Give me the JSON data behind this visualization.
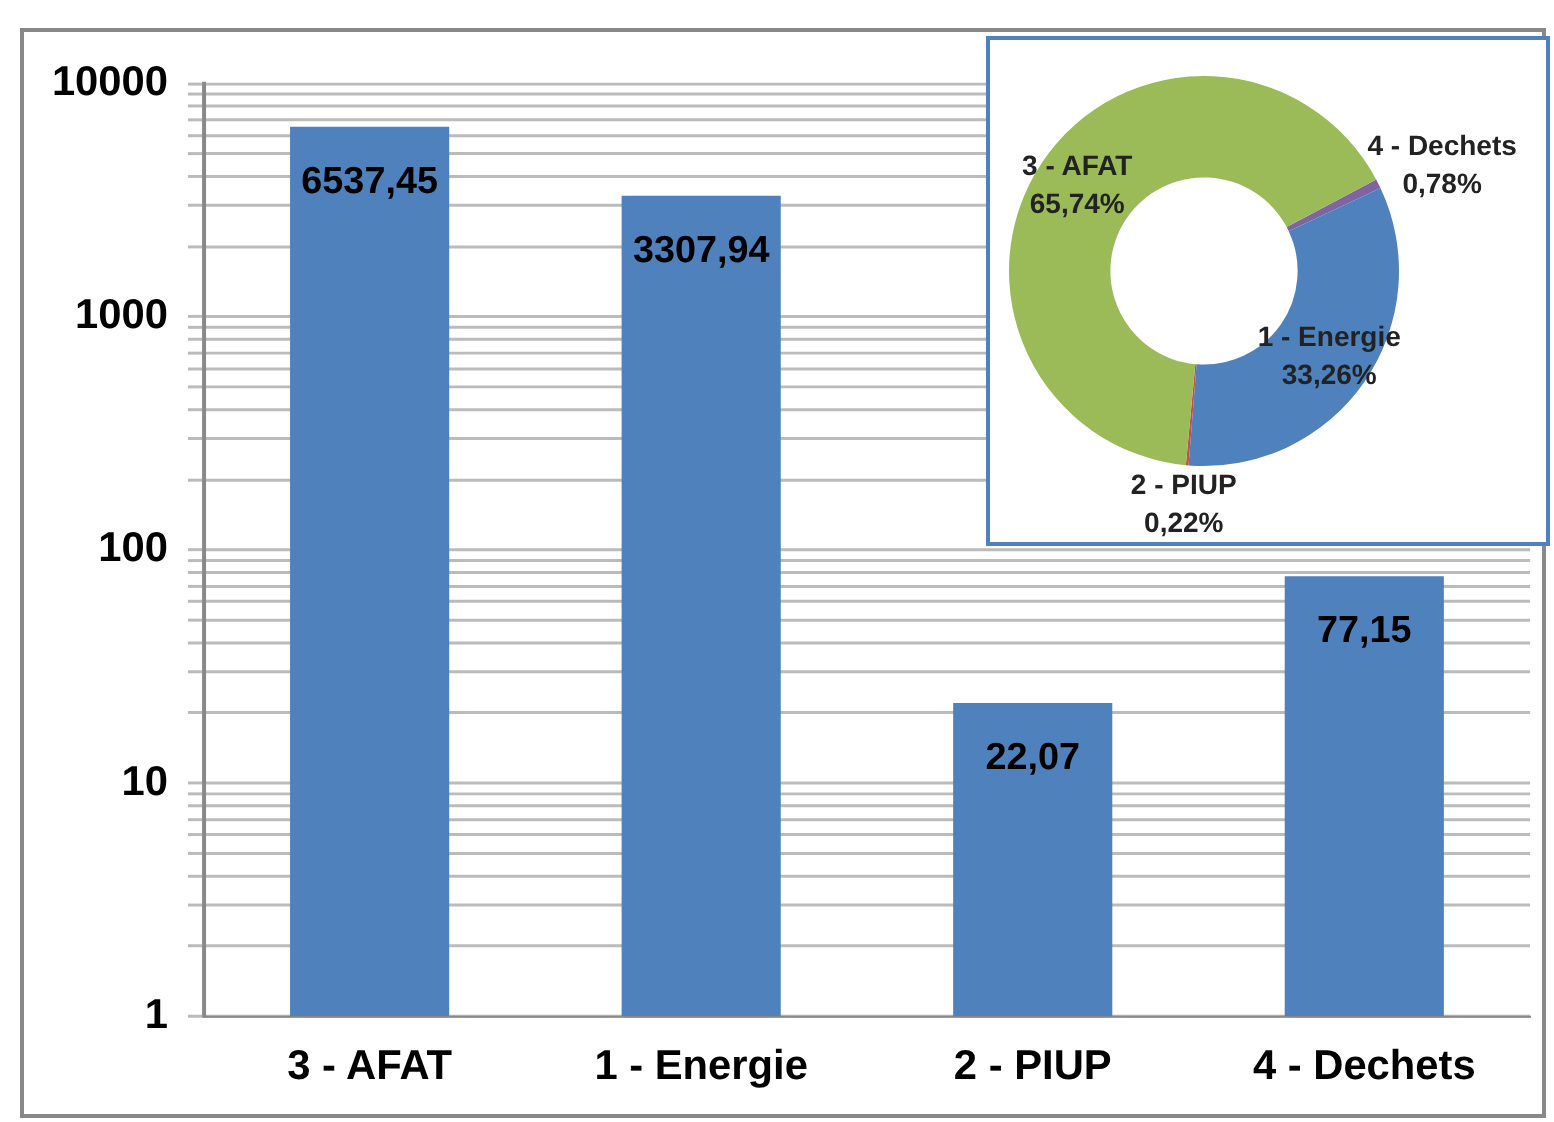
{
  "chart_data": [
    {
      "type": "bar",
      "log": "y",
      "categories": [
        "3 - AFAT",
        "1 - Energie",
        "2 - PIUP",
        "4 - Dechets"
      ],
      "values": [
        6537.45,
        3307.94,
        22.07,
        77.15
      ],
      "value_labels": [
        "6537,45",
        "3307,94",
        "22,07",
        "77,15"
      ],
      "color": "#4f81bd",
      "ylim": [
        1,
        10000
      ],
      "yticks": [
        1,
        {
          "value": 2,
          "label": null
        },
        {
          "value": 3,
          "label": null
        },
        {
          "value": 4,
          "label": null
        },
        {
          "value": 5,
          "label": null
        },
        {
          "value": 6,
          "label": null
        },
        {
          "value": 7,
          "label": null
        },
        {
          "value": 8,
          "label": null
        },
        {
          "value": 9,
          "label": null
        },
        10,
        {
          "value": 20,
          "label": null
        },
        {
          "value": 30,
          "label": null
        },
        {
          "value": 40,
          "label": null
        },
        {
          "value": 50,
          "label": null
        },
        {
          "value": 60,
          "label": null
        },
        {
          "value": 70,
          "label": null
        },
        {
          "value": 80,
          "label": null
        },
        {
          "value": 90,
          "label": null
        },
        100,
        {
          "value": 200,
          "label": null
        },
        {
          "value": 300,
          "label": null
        },
        {
          "value": 400,
          "label": null
        },
        {
          "value": 500,
          "label": null
        },
        {
          "value": 600,
          "label": null
        },
        {
          "value": 700,
          "label": null
        },
        {
          "value": 800,
          "label": null
        },
        {
          "value": 900,
          "label": null
        },
        1000,
        {
          "value": 2000,
          "label": null
        },
        {
          "value": 3000,
          "label": null
        },
        {
          "value": 4000,
          "label": null
        },
        {
          "value": 5000,
          "label": null
        },
        {
          "value": 6000,
          "label": null
        },
        {
          "value": 7000,
          "label": null
        },
        {
          "value": 8000,
          "label": null
        },
        {
          "value": 9000,
          "label": null
        },
        10000
      ],
      "grid": "y",
      "legend": false
    },
    {
      "type": "donut",
      "categories": [
        "4 - Dechets",
        "1 - Energie",
        "2 - PIUP",
        "3 - AFAT"
      ],
      "values": [
        0.78,
        33.26,
        0.22,
        65.74
      ],
      "value_labels": [
        "0,78%",
        "33,26%",
        "0,22%",
        "65,74%"
      ],
      "colors": [
        "#8064a2",
        "#4f81bd",
        "#c0504d",
        "#9bbb59"
      ],
      "legend": false
    }
  ]
}
